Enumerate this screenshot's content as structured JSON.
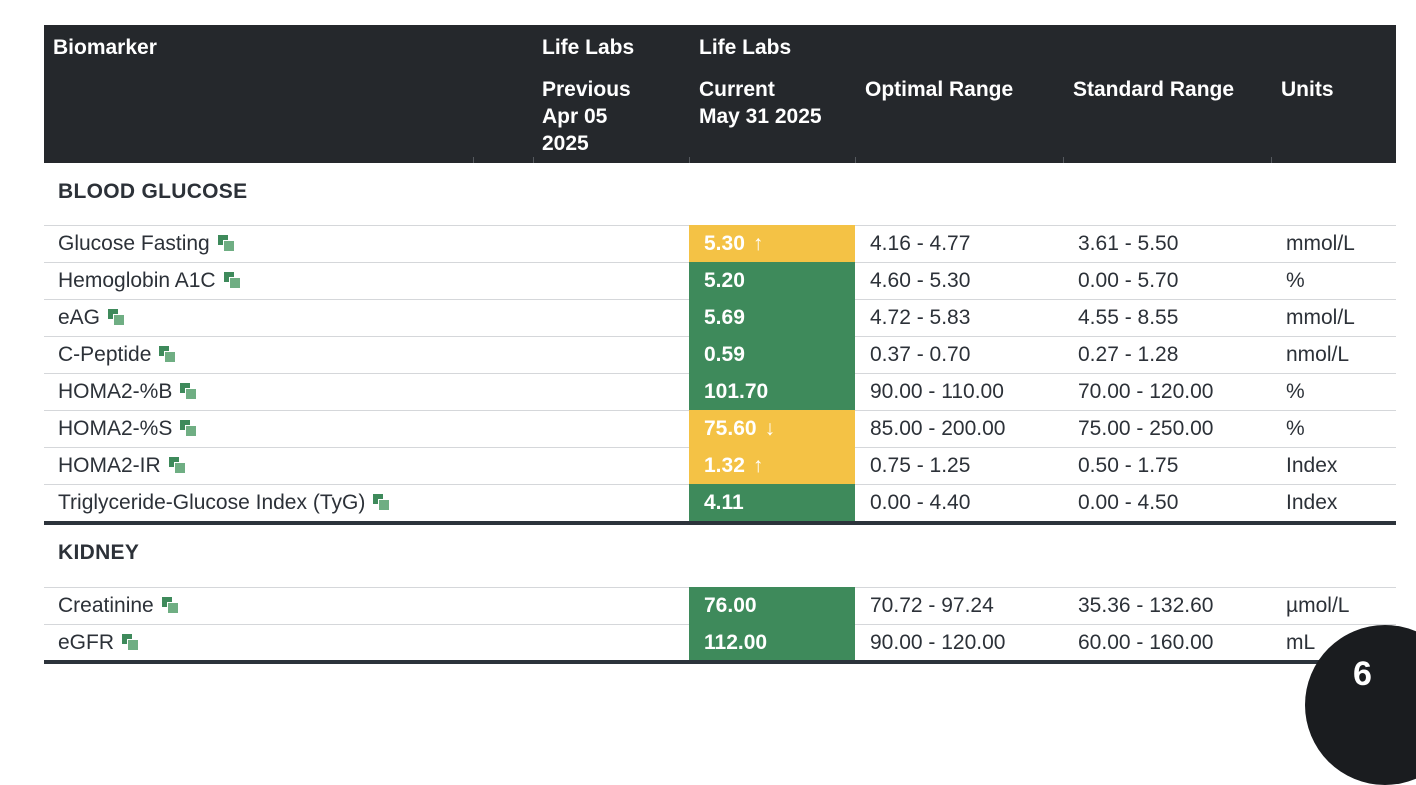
{
  "header": {
    "biomarker": "Biomarker",
    "prev_lab": "Life Labs",
    "prev_label": "Previous",
    "prev_date_1": "Apr 05",
    "prev_date_2": "2025",
    "curr_lab": "Life Labs",
    "curr_label": "Current",
    "curr_date": "May 31 2025",
    "optimal": "Optimal Range",
    "standard": "Standard Range",
    "units": "Units"
  },
  "sections": [
    {
      "title": "BLOOD GLUCOSE",
      "rows": [
        {
          "name": "Glucose Fasting",
          "value": "5.30",
          "status": "yellow",
          "arrow": "↑",
          "optimal": "4.16 - 4.77",
          "standard": "3.61 - 5.50",
          "unit": "mmol/L"
        },
        {
          "name": "Hemoglobin A1C",
          "value": "5.20",
          "status": "green",
          "arrow": "",
          "optimal": "4.60 - 5.30",
          "standard": "0.00 - 5.70",
          "unit": "%"
        },
        {
          "name": "eAG",
          "value": "5.69",
          "status": "green",
          "arrow": "",
          "optimal": "4.72 - 5.83",
          "standard": "4.55 - 8.55",
          "unit": "mmol/L"
        },
        {
          "name": "C-Peptide",
          "value": "0.59",
          "status": "green",
          "arrow": "",
          "optimal": "0.37 - 0.70",
          "standard": "0.27 - 1.28",
          "unit": "nmol/L"
        },
        {
          "name": "HOMA2-%B",
          "value": "101.70",
          "status": "green",
          "arrow": "",
          "optimal": "90.00 - 110.00",
          "standard": "70.00 - 120.00",
          "unit": "%"
        },
        {
          "name": "HOMA2-%S",
          "value": "75.60",
          "status": "yellow",
          "arrow": "↓",
          "optimal": "85.00 - 200.00",
          "standard": "75.00 - 250.00",
          "unit": "%"
        },
        {
          "name": "HOMA2-IR",
          "value": "1.32",
          "status": "yellow",
          "arrow": "↑",
          "optimal": "0.75 - 1.25",
          "standard": "0.50 - 1.75",
          "unit": "Index"
        },
        {
          "name": "Triglyceride-Glucose Index (TyG)",
          "value": "4.11",
          "status": "green",
          "arrow": "",
          "optimal": "0.00 - 4.40",
          "standard": "0.00 - 4.50",
          "unit": "Index"
        }
      ]
    },
    {
      "title": "KIDNEY",
      "rows": [
        {
          "name": "Creatinine",
          "value": "76.00",
          "status": "green",
          "arrow": "",
          "optimal": "70.72 - 97.24",
          "standard": "35.36 - 132.60",
          "unit": "µmol/L"
        },
        {
          "name": "eGFR",
          "value": "112.00",
          "status": "green",
          "arrow": "",
          "optimal": "90.00 - 120.00",
          "standard": "60.00 - 160.00",
          "unit": "mL"
        }
      ]
    }
  ],
  "badge": {
    "text": "6"
  },
  "colors": {
    "header_bg": "#25282c",
    "in_range": "#3e8a5b",
    "out_of_range": "#f4c245",
    "text": "#2c3138"
  }
}
